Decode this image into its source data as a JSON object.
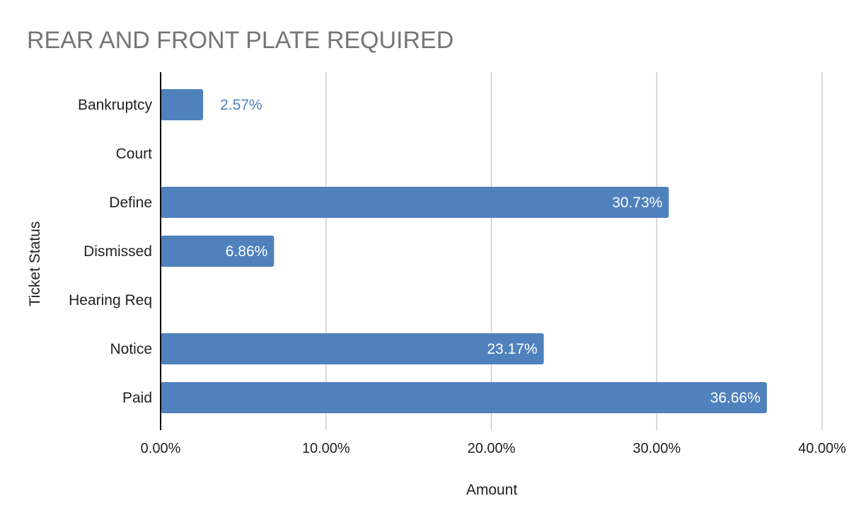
{
  "chart_data": {
    "type": "bar",
    "orientation": "horizontal",
    "title": "REAR AND FRONT PLATE REQUIRED",
    "xlabel": "Amount",
    "ylabel": "Ticket Status",
    "categories": [
      "Bankruptcy",
      "Court",
      "Define",
      "Dismissed",
      "Hearing Req",
      "Notice",
      "Paid"
    ],
    "values": [
      2.57,
      0,
      30.73,
      6.86,
      0,
      23.17,
      36.66
    ],
    "value_labels": [
      "2.57%",
      "",
      "30.73%",
      "6.86%",
      "",
      "23.17%",
      "36.66%"
    ],
    "xlim": [
      0,
      40
    ],
    "xticks": [
      0,
      10,
      20,
      30,
      40
    ],
    "xtick_labels": [
      "0.00%",
      "10.00%",
      "20.00%",
      "30.00%",
      "40.00%"
    ],
    "grid": "vertical",
    "legend": "none",
    "colors": {
      "bar": "#4f81bd",
      "label_inside": "#ffffff",
      "label_outside": "#4f81bd",
      "grid": "#cccccc",
      "axis": "#000000",
      "title": "#757575"
    }
  }
}
